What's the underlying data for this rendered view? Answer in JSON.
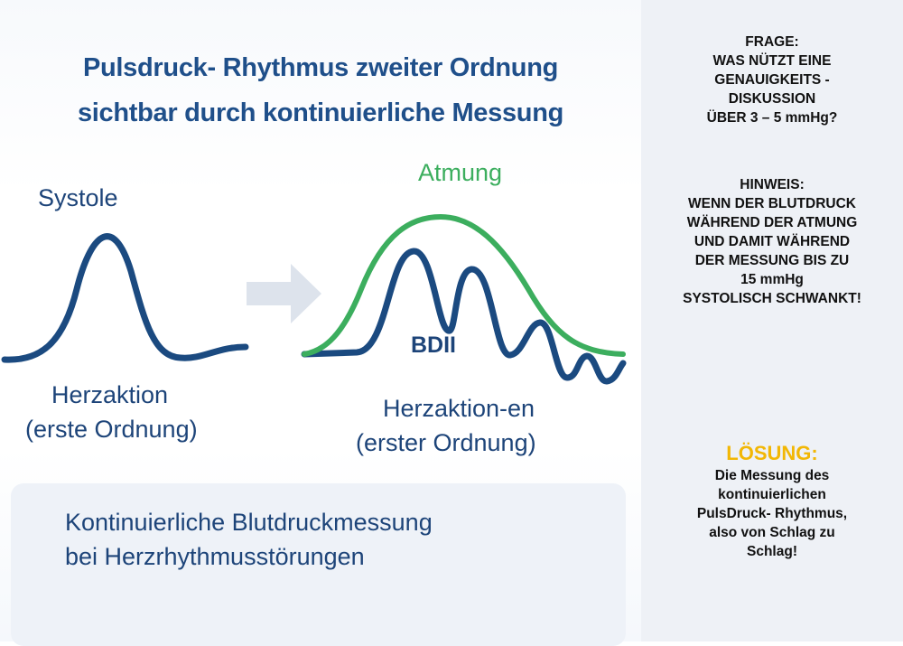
{
  "title": {
    "line1": "Pulsdruck- Rhythmus zweiter Ordnung",
    "line2": "sichtbar durch kontinuierliche Messung"
  },
  "diagram": {
    "left": {
      "top_label": "Systole",
      "bottom_label_1": "Herzaktion",
      "bottom_label_2": "(erste Ordnung)"
    },
    "right": {
      "top_label": "Atmung",
      "mid_label": "BDII",
      "bottom_label_1": "Herzaktion-en",
      "bottom_label_2": "(erster Ordnung)"
    },
    "colors": {
      "pulse": "#1b4a80",
      "breathing": "#3cae5e",
      "arrow": "#dde3ec",
      "title": "#1f4f8a"
    }
  },
  "bottom_box": {
    "line1": "Kontinuierliche Blutdruckmessung",
    "line2": "bei Herzrhythmusstörungen"
  },
  "sidebar": {
    "question": [
      "FRAGE:",
      "WAS NÜTZT EINE",
      "GENAUIGKEITS -",
      "DISKUSSION",
      "ÜBER 3 – 5 mmHg?"
    ],
    "hint": [
      "HINWEIS:",
      "WENN DER BLUTDRUCK",
      "WÄHREND DER ATMUNG",
      "UND DAMIT WÄHREND",
      "DER MESSUNG BIS ZU",
      "15 mmHg",
      "SYSTOLISCH SCHWANKT!"
    ],
    "solution_heading": "LÖSUNG:",
    "solution": [
      "Die Messung des",
      "kontinuierlichen",
      "PulsDruck- Rhythmus,",
      "also von Schlag zu",
      "Schlag!"
    ],
    "solution_color": "#f2b705"
  }
}
